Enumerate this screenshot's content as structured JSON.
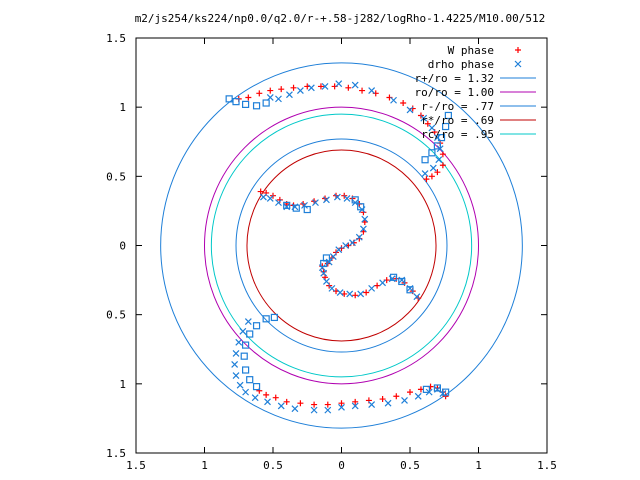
{
  "chart_data": {
    "type": "scatter",
    "title": "m2/js254/ks224/np0.0/q2.0/r-+.58-j282/logRho-1.4225/M10.00/512",
    "xlim": [
      -1.5,
      1.5
    ],
    "ylim": [
      -1.5,
      1.5
    ],
    "x_ticks": [
      -1.5,
      -1,
      -0.5,
      0,
      0.5,
      1,
      1.5
    ],
    "y_ticks": [
      -1.5,
      -1,
      -0.5,
      0,
      0.5,
      1,
      1.5
    ],
    "x_tick_labels": [
      "1.5",
      "1",
      "0.5",
      "0",
      "0.5",
      "1",
      "1.5"
    ],
    "y_tick_labels": [
      "1.5",
      "1",
      "0.5",
      "0",
      "0.5",
      "1",
      "1.5"
    ],
    "grid": false,
    "legend_position": "top-right",
    "scatter_series": [
      {
        "name": "W phase",
        "marker": "plus",
        "color": "#ff0000",
        "points": [
          [
            -0.75,
            1.06
          ],
          [
            -0.68,
            1.07
          ],
          [
            -0.6,
            1.1
          ],
          [
            -0.52,
            1.12
          ],
          [
            -0.44,
            1.13
          ],
          [
            -0.35,
            1.14
          ],
          [
            -0.25,
            1.15
          ],
          [
            -0.15,
            1.15
          ],
          [
            -0.05,
            1.15
          ],
          [
            0.05,
            1.14
          ],
          [
            0.15,
            1.12
          ],
          [
            0.25,
            1.1
          ],
          [
            0.35,
            1.07
          ],
          [
            0.45,
            1.03
          ],
          [
            0.52,
            0.99
          ],
          [
            0.58,
            0.94
          ],
          [
            0.63,
            0.88
          ],
          [
            0.68,
            0.82
          ],
          [
            0.72,
            0.74
          ],
          [
            0.74,
            0.66
          ],
          [
            0.74,
            0.58
          ],
          [
            0.7,
            0.53
          ],
          [
            0.66,
            0.5
          ],
          [
            0.62,
            0.48
          ],
          [
            -0.6,
            -1.05
          ],
          [
            -0.55,
            -1.08
          ],
          [
            -0.48,
            -1.1
          ],
          [
            -0.4,
            -1.13
          ],
          [
            -0.3,
            -1.14
          ],
          [
            -0.2,
            -1.15
          ],
          [
            -0.1,
            -1.15
          ],
          [
            0.0,
            -1.14
          ],
          [
            0.1,
            -1.13
          ],
          [
            0.2,
            -1.12
          ],
          [
            0.3,
            -1.11
          ],
          [
            0.4,
            -1.09
          ],
          [
            0.5,
            -1.06
          ],
          [
            0.58,
            -1.04
          ],
          [
            0.65,
            -1.02
          ],
          [
            0.7,
            -1.03
          ],
          [
            0.74,
            -1.06
          ],
          [
            0.76,
            -1.09
          ],
          [
            -0.59,
            0.39
          ],
          [
            -0.55,
            0.38
          ],
          [
            -0.5,
            0.36
          ],
          [
            -0.45,
            0.33
          ],
          [
            -0.4,
            0.3
          ],
          [
            -0.35,
            0.29
          ],
          [
            -0.28,
            0.3
          ],
          [
            -0.2,
            0.32
          ],
          [
            -0.12,
            0.34
          ],
          [
            -0.04,
            0.36
          ],
          [
            0.02,
            0.36
          ],
          [
            0.08,
            0.34
          ],
          [
            0.13,
            0.3
          ],
          [
            0.16,
            0.24
          ],
          [
            0.17,
            0.17
          ],
          [
            0.16,
            0.1
          ],
          [
            0.13,
            0.05
          ],
          [
            0.09,
            0.02
          ],
          [
            0.05,
            0.0
          ],
          [
            0.0,
            -0.02
          ],
          [
            -0.04,
            -0.05
          ],
          [
            -0.07,
            -0.09
          ],
          [
            -0.1,
            -0.13
          ],
          [
            -0.14,
            -0.15
          ],
          [
            -0.13,
            -0.19
          ],
          [
            -0.12,
            -0.23
          ],
          [
            -0.09,
            -0.29
          ],
          [
            -0.04,
            -0.33
          ],
          [
            0.02,
            -0.35
          ],
          [
            0.1,
            -0.36
          ],
          [
            0.18,
            -0.34
          ],
          [
            0.26,
            -0.29
          ],
          [
            0.33,
            -0.25
          ],
          [
            0.4,
            -0.24
          ],
          [
            0.46,
            -0.27
          ],
          [
            0.52,
            -0.33
          ],
          [
            0.56,
            -0.38
          ]
        ]
      },
      {
        "name": "drho phase",
        "marker": "cross",
        "color": "#1e7fd8",
        "points": [
          [
            -0.52,
            1.07
          ],
          [
            -0.46,
            1.06
          ],
          [
            -0.38,
            1.09
          ],
          [
            -0.3,
            1.12
          ],
          [
            -0.22,
            1.14
          ],
          [
            -0.12,
            1.15
          ],
          [
            -0.02,
            1.17
          ],
          [
            0.1,
            1.16
          ],
          [
            0.22,
            1.12
          ],
          [
            0.38,
            1.05
          ],
          [
            0.5,
            0.98
          ],
          [
            0.6,
            0.92
          ],
          [
            0.66,
            0.85
          ],
          [
            0.7,
            0.78
          ],
          [
            0.72,
            0.7
          ],
          [
            0.71,
            0.62
          ],
          [
            0.67,
            0.56
          ],
          [
            0.61,
            0.52
          ],
          [
            -0.68,
            -0.55
          ],
          [
            -0.72,
            -0.62
          ],
          [
            -0.75,
            -0.7
          ],
          [
            -0.77,
            -0.78
          ],
          [
            -0.78,
            -0.86
          ],
          [
            -0.77,
            -0.94
          ],
          [
            -0.74,
            -1.01
          ],
          [
            -0.7,
            -1.06
          ],
          [
            -0.63,
            -1.1
          ],
          [
            -0.54,
            -1.13
          ],
          [
            -0.44,
            -1.16
          ],
          [
            -0.34,
            -1.18
          ],
          [
            -0.2,
            -1.19
          ],
          [
            -0.1,
            -1.19
          ],
          [
            0.0,
            -1.17
          ],
          [
            0.1,
            -1.16
          ],
          [
            0.22,
            -1.15
          ],
          [
            0.34,
            -1.14
          ],
          [
            0.46,
            -1.12
          ],
          [
            0.56,
            -1.09
          ],
          [
            0.64,
            -1.06
          ],
          [
            0.7,
            -1.04
          ],
          [
            0.74,
            -1.07
          ],
          [
            -0.57,
            0.35
          ],
          [
            -0.52,
            0.34
          ],
          [
            -0.46,
            0.31
          ],
          [
            -0.4,
            0.28
          ],
          [
            -0.34,
            0.28
          ],
          [
            -0.27,
            0.29
          ],
          [
            -0.19,
            0.31
          ],
          [
            -0.11,
            0.33
          ],
          [
            -0.03,
            0.35
          ],
          [
            0.04,
            0.34
          ],
          [
            0.1,
            0.31
          ],
          [
            0.15,
            0.26
          ],
          [
            0.17,
            0.19
          ],
          [
            0.16,
            0.12
          ],
          [
            0.13,
            0.06
          ],
          [
            0.08,
            0.02
          ],
          [
            0.03,
            0.0
          ],
          [
            -0.02,
            -0.03
          ],
          [
            -0.06,
            -0.08
          ],
          [
            -0.09,
            -0.12
          ],
          [
            -0.14,
            -0.16
          ],
          [
            -0.13,
            -0.2
          ],
          [
            -0.11,
            -0.26
          ],
          [
            -0.07,
            -0.31
          ],
          [
            -0.01,
            -0.34
          ],
          [
            0.06,
            -0.35
          ],
          [
            0.14,
            -0.35
          ],
          [
            0.22,
            -0.31
          ],
          [
            0.3,
            -0.27
          ],
          [
            0.37,
            -0.24
          ],
          [
            0.44,
            -0.25
          ],
          [
            0.5,
            -0.31
          ],
          [
            0.55,
            -0.37
          ]
        ]
      }
    ],
    "band_series": [
      {
        "color": "#1e7fd8",
        "points": [
          [
            0.78,
            0.94
          ],
          [
            0.76,
            0.86
          ],
          [
            0.73,
            0.78
          ],
          [
            0.7,
            0.72
          ],
          [
            0.66,
            0.67
          ],
          [
            0.61,
            0.62
          ],
          [
            -0.49,
            -0.52
          ],
          [
            -0.55,
            -0.53
          ],
          [
            -0.62,
            -0.58
          ],
          [
            -0.67,
            -0.64
          ],
          [
            -0.7,
            -0.72
          ],
          [
            -0.71,
            -0.8
          ],
          [
            -0.7,
            -0.9
          ],
          [
            -0.67,
            -0.97
          ],
          [
            -0.62,
            -1.02
          ],
          [
            -0.82,
            1.06
          ],
          [
            -0.77,
            1.04
          ],
          [
            -0.7,
            1.02
          ],
          [
            -0.62,
            1.01
          ],
          [
            -0.55,
            1.03
          ],
          [
            0.62,
            -1.04
          ],
          [
            0.7,
            -1.03
          ],
          [
            0.76,
            -1.06
          ],
          [
            -0.4,
            0.29
          ],
          [
            -0.33,
            0.27
          ],
          [
            -0.25,
            0.26
          ],
          [
            0.1,
            0.33
          ],
          [
            0.14,
            0.28
          ],
          [
            -0.13,
            -0.13
          ],
          [
            -0.11,
            -0.09
          ],
          [
            0.38,
            -0.23
          ],
          [
            0.44,
            -0.26
          ],
          [
            0.5,
            -0.32
          ]
        ]
      }
    ],
    "circle_series": [
      {
        "name": "r+/ro = 1.32",
        "radius": 1.32,
        "color": "#1e7fd8"
      },
      {
        "name": "ro/ro = 1.00",
        "radius": 1.0,
        "color": "#b000b0"
      },
      {
        "name": "r-/ro = .77",
        "radius": 0.77,
        "color": "#1e7fd8"
      },
      {
        "name": "r*/ro = .69",
        "radius": 0.69,
        "color": "#c00000"
      },
      {
        "name": "rc/ro = .95",
        "radius": 0.95,
        "color": "#00c8c8"
      }
    ]
  }
}
